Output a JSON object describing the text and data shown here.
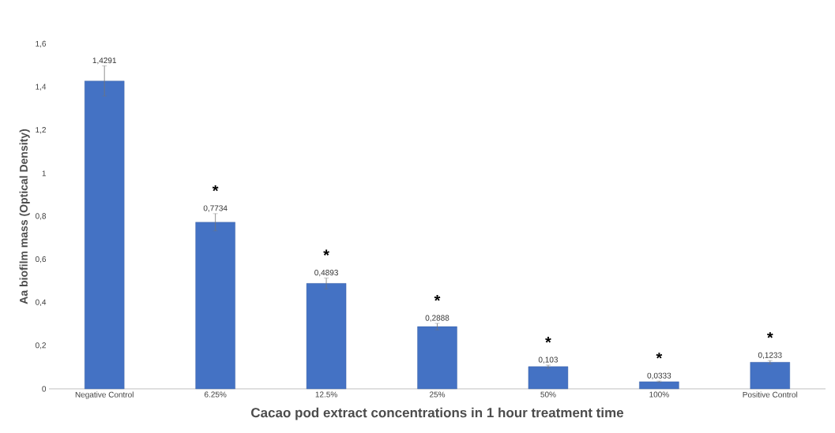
{
  "chart_data": {
    "type": "bar",
    "xlabel": "Cacao pod extract concentrations in 1 hour treatment time",
    "ylabel": "Aa biofilm mass (Optical Density)",
    "categories": [
      "Negative Control",
      "6.25%",
      "12.5%",
      "25%",
      "50%",
      "100%",
      "Positive Control"
    ],
    "values": [
      1.4291,
      0.7734,
      0.4893,
      0.2888,
      0.103,
      0.0333,
      0.1233
    ],
    "value_labels": [
      "1,4291",
      "0,7734",
      "0,4893",
      "0,2888",
      "0,103",
      "0,0333",
      "0,1233"
    ],
    "errors": [
      0.07,
      0.04,
      0.025,
      0.015,
      0.007,
      0.003,
      0.008
    ],
    "color": "#4472c4",
    "ylim": [
      0,
      1.6
    ],
    "yticks": [
      0,
      {
        "value": 0.2,
        "label": "0,2"
      },
      {
        "value": 0.4,
        "label": "0,4"
      },
      {
        "value": 0.6,
        "label": "0,6"
      },
      {
        "value": 0.8,
        "label": "0,8"
      },
      1,
      {
        "value": 1.2,
        "label": "1,2"
      },
      {
        "value": 1.4,
        "label": "1,4"
      },
      {
        "value": 1.6,
        "label": "1,6"
      }
    ],
    "annotations": [
      "*",
      "*",
      "*",
      "*",
      "*",
      "*"
    ]
  }
}
